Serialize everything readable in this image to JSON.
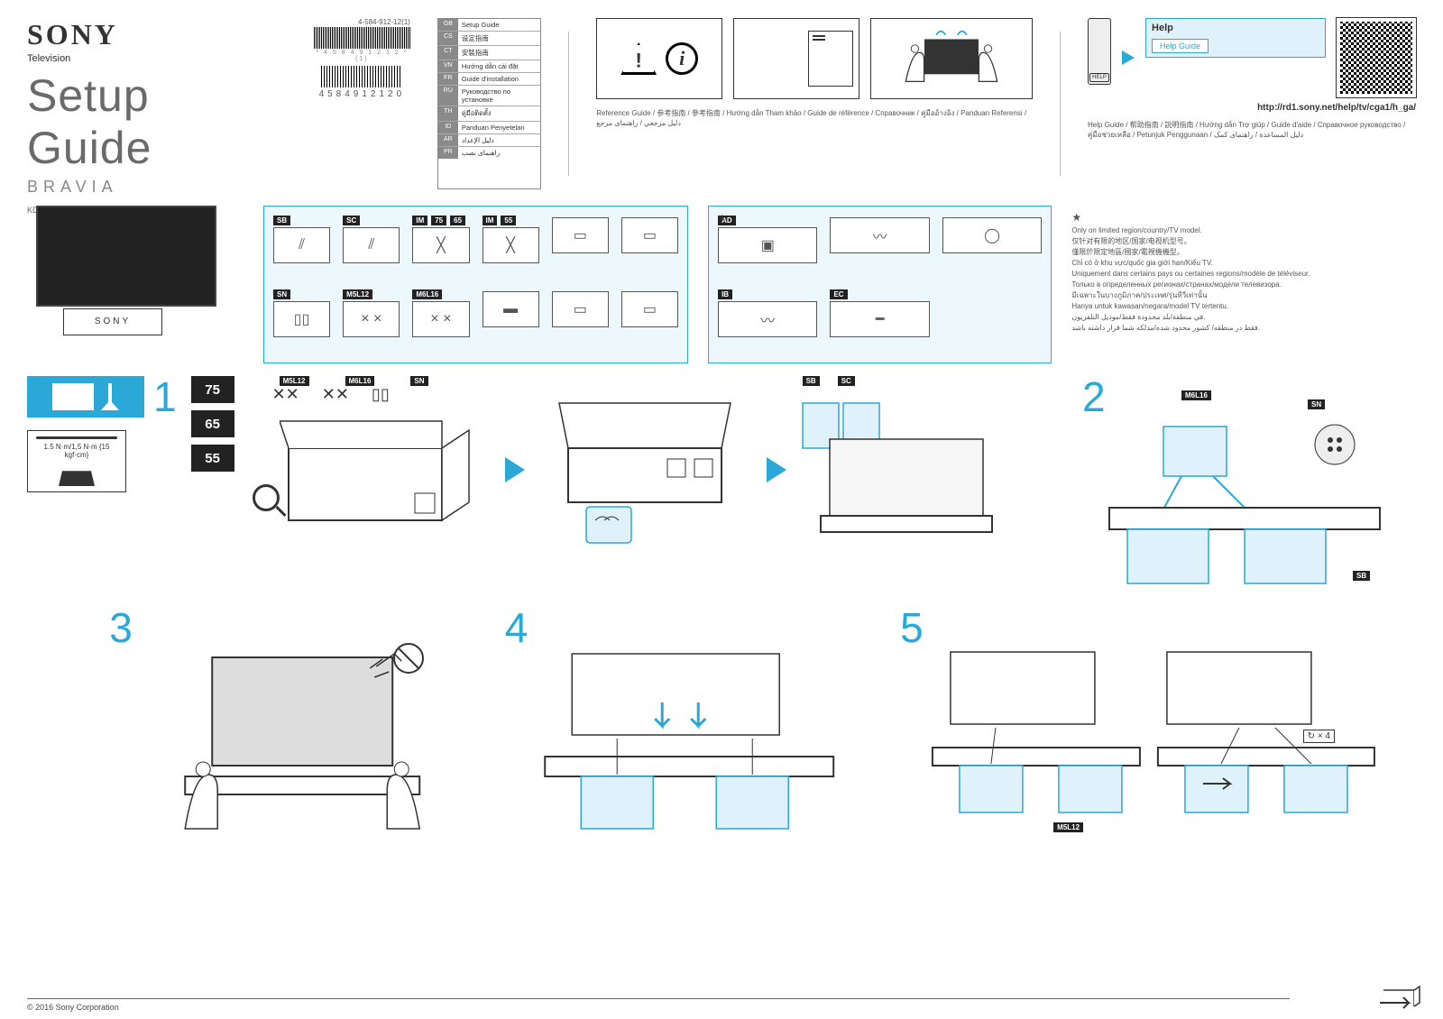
{
  "doc": {
    "logo": "SONY",
    "category": "Television",
    "title": "Setup Guide",
    "brand": "BRAVIA",
    "models": "KD-75X8500D / 65X8500D / 55X8500D",
    "code_top": "4-584-912-12(1)",
    "barcode_sub": "* 4 5 8 4 9 1 2 1 2 * (1)",
    "barcode2_sub": "4584912120",
    "copyright": "© 2016 Sony Corporation"
  },
  "languages": [
    {
      "code": "GB",
      "txt": "Setup Guide"
    },
    {
      "code": "CS",
      "txt": "设定指南"
    },
    {
      "code": "CT",
      "txt": "安裝指南"
    },
    {
      "code": "VN",
      "txt": "Hướng dẫn cài đặt"
    },
    {
      "code": "FR",
      "txt": "Guide d'installation"
    },
    {
      "code": "RU",
      "txt": "Руководство по установке"
    },
    {
      "code": "TH",
      "txt": "คู่มือติดตั้ง"
    },
    {
      "code": "ID",
      "txt": "Panduan Penyetelan"
    },
    {
      "code": "AR",
      "txt": "دليل الإعداد"
    },
    {
      "code": "PR",
      "txt": "راهنمای نصب"
    }
  ],
  "ref_caption": "Reference Guide / 参考指南 / 參考指南 / Hướng dẫn Tham khảo / Guide de référence / Справочник / คู่มืออ้างอิง / Panduan Referensi / دليل مرجعي / راهنمای مرجع",
  "help": {
    "title": "Help",
    "button": "Help Guide",
    "url": "http://rd1.sony.net/help/tv/cga1/h_ga/",
    "caption": "Help Guide / 帮助指南 / 說明指南 / Hướng dẫn Trợ giúp / Guide d'aide / Справочное руководство / คู่มือช่วยเหลือ / Petunjuk Penggunaan / دليل المساعدة / راهنمای کمک"
  },
  "parts_main": [
    {
      "labels": [
        "SB"
      ],
      "glyph": "⫽"
    },
    {
      "labels": [
        "SC"
      ],
      "glyph": "⫽"
    },
    {
      "labels": [
        "IM",
        "75",
        "65"
      ],
      "glyph": "╳"
    },
    {
      "labels": [
        "IM",
        "55"
      ],
      "glyph": "╳"
    },
    {
      "labels": [],
      "glyph": "▭"
    },
    {
      "labels": [],
      "glyph": "▭"
    },
    {
      "labels": [
        "SN"
      ],
      "glyph": "▯▯"
    },
    {
      "labels": [
        "M5L12"
      ],
      "glyph": "× ×"
    },
    {
      "labels": [
        "M6L16"
      ],
      "glyph": "× ×"
    },
    {
      "labels": [],
      "glyph": "▬"
    },
    {
      "labels": [],
      "glyph": "▭"
    },
    {
      "labels": [],
      "glyph": "▭"
    }
  ],
  "parts_extra": [
    {
      "labels": [
        "AD"
      ],
      "glyph": "▣"
    },
    {
      "labels": [],
      "glyph": "〰"
    },
    {
      "labels": [],
      "glyph": "◯"
    },
    {
      "labels": [
        "IB"
      ],
      "glyph": "〰"
    },
    {
      "labels": [
        "EC"
      ],
      "glyph": "━"
    }
  ],
  "note_lines": [
    "Only on limited region/country/TV model.",
    "仅针对有限的地区/国家/电视机型号。",
    "僅限於限定地區/國家/電視機機型。",
    "Chỉ có ở khu vực/quốc gia giới hạn/Kiểu TV.",
    "Uniquement dans certains pays ou certaines regions/modèle de téléviseur.",
    "Только в определенных регионах/странах/модели телевизора.",
    "มีเฉพาะในบางภูมิภาค/ประเทศ/รุ่นทีวีเท่านั้น",
    "Hanya untuk kawasan/negara/model TV tertentu.",
    "في منطقة/بلد محدودة فقط/موديل التلفزيون.",
    "فقط در منطقه/ کشور محدود شده/مدلکه شما قرار داشته باشد."
  ],
  "note_star": "★",
  "steps": {
    "s1": "1",
    "s2": "2",
    "s3": "3",
    "s4": "4",
    "s5": "5",
    "sizes": [
      "75",
      "65",
      "55"
    ],
    "s1_tags": [
      "M5L12",
      "M6L16",
      "SN"
    ],
    "s1_mid_tags": [
      "SB",
      "SC"
    ],
    "s2_tags": [
      "M6L16",
      "SN",
      "SB"
    ],
    "torque": "1.5 N·m/1,5 N·m\n{15 kgf·cm}",
    "s5_x4": "× 4",
    "s5_tag": "M5L12"
  }
}
